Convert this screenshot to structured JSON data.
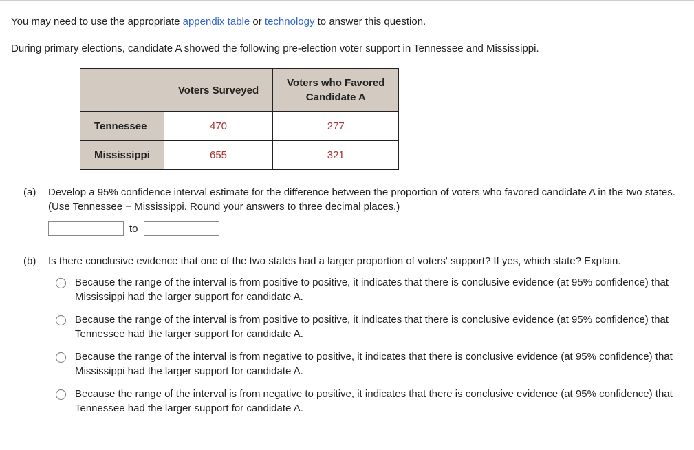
{
  "intro": {
    "pre": "You may need to use the appropriate ",
    "link1": "appendix table",
    "mid": " or ",
    "link2": "technology",
    "post": " to answer this question."
  },
  "scenario": "During primary elections, candidate A showed the following pre-election voter support in Tennessee and Mississippi.",
  "table": {
    "headers": {
      "col1": "Voters Surveyed",
      "col2_l1": "Voters who Favored",
      "col2_l2": "Candidate A"
    },
    "rows": [
      {
        "state": "Tennessee",
        "surveyed": "470",
        "favored": "277"
      },
      {
        "state": "Mississippi",
        "surveyed": "655",
        "favored": "321"
      }
    ],
    "colors": {
      "header_bg": "#d3cbc1",
      "data_text": "#aa3333"
    }
  },
  "partA": {
    "label": "(a)",
    "text": "Develop a 95% confidence interval estimate for the difference between the proportion of voters who favored candidate A in the two states. (Use Tennessee − Mississippi. Round your answers to three decimal places.)",
    "join": "to"
  },
  "partB": {
    "label": "(b)",
    "text": "Is there conclusive evidence that one of the two states had a larger proportion of voters' support? If yes, which state? Explain.",
    "options": [
      "Because the range of the interval is from positive to positive, it indicates that there is conclusive evidence (at 95% confidence) that Mississippi had the larger support for candidate A.",
      "Because the range of the interval is from positive to positive, it indicates that there is conclusive evidence (at 95% confidence) that Tennessee had the larger support for candidate A.",
      "Because the range of the interval is from negative to positive, it indicates that there is conclusive evidence (at 95% confidence) that Mississippi had the larger support for candidate A.",
      "Because the range of the interval is from negative to positive, it indicates that there is conclusive evidence (at 95% confidence) that Tennessee had the larger support for candidate A."
    ]
  }
}
